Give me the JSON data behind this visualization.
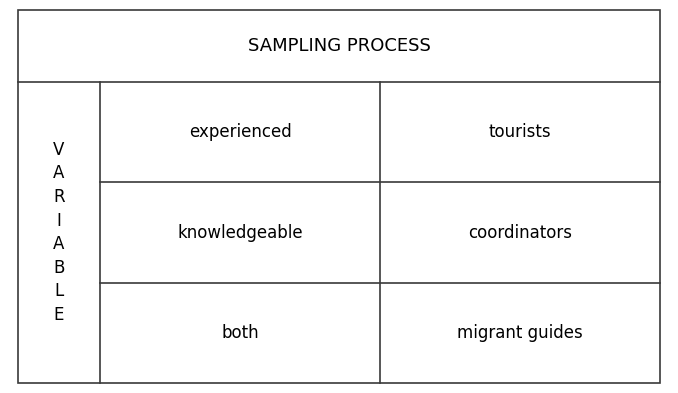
{
  "title": "SAMPLING PROCESS",
  "variable_label": "V\nA\nR\nI\nA\nB\nL\nE",
  "cells": [
    [
      "experienced",
      "tourists"
    ],
    [
      "knowledgeable",
      "coordinators"
    ],
    [
      "both",
      "migrant guides"
    ]
  ],
  "title_fontsize": 13,
  "cell_fontsize": 12,
  "variable_fontsize": 12,
  "bg_color": "#ffffff",
  "border_color": "#3a3a3a",
  "text_color": "#000000"
}
